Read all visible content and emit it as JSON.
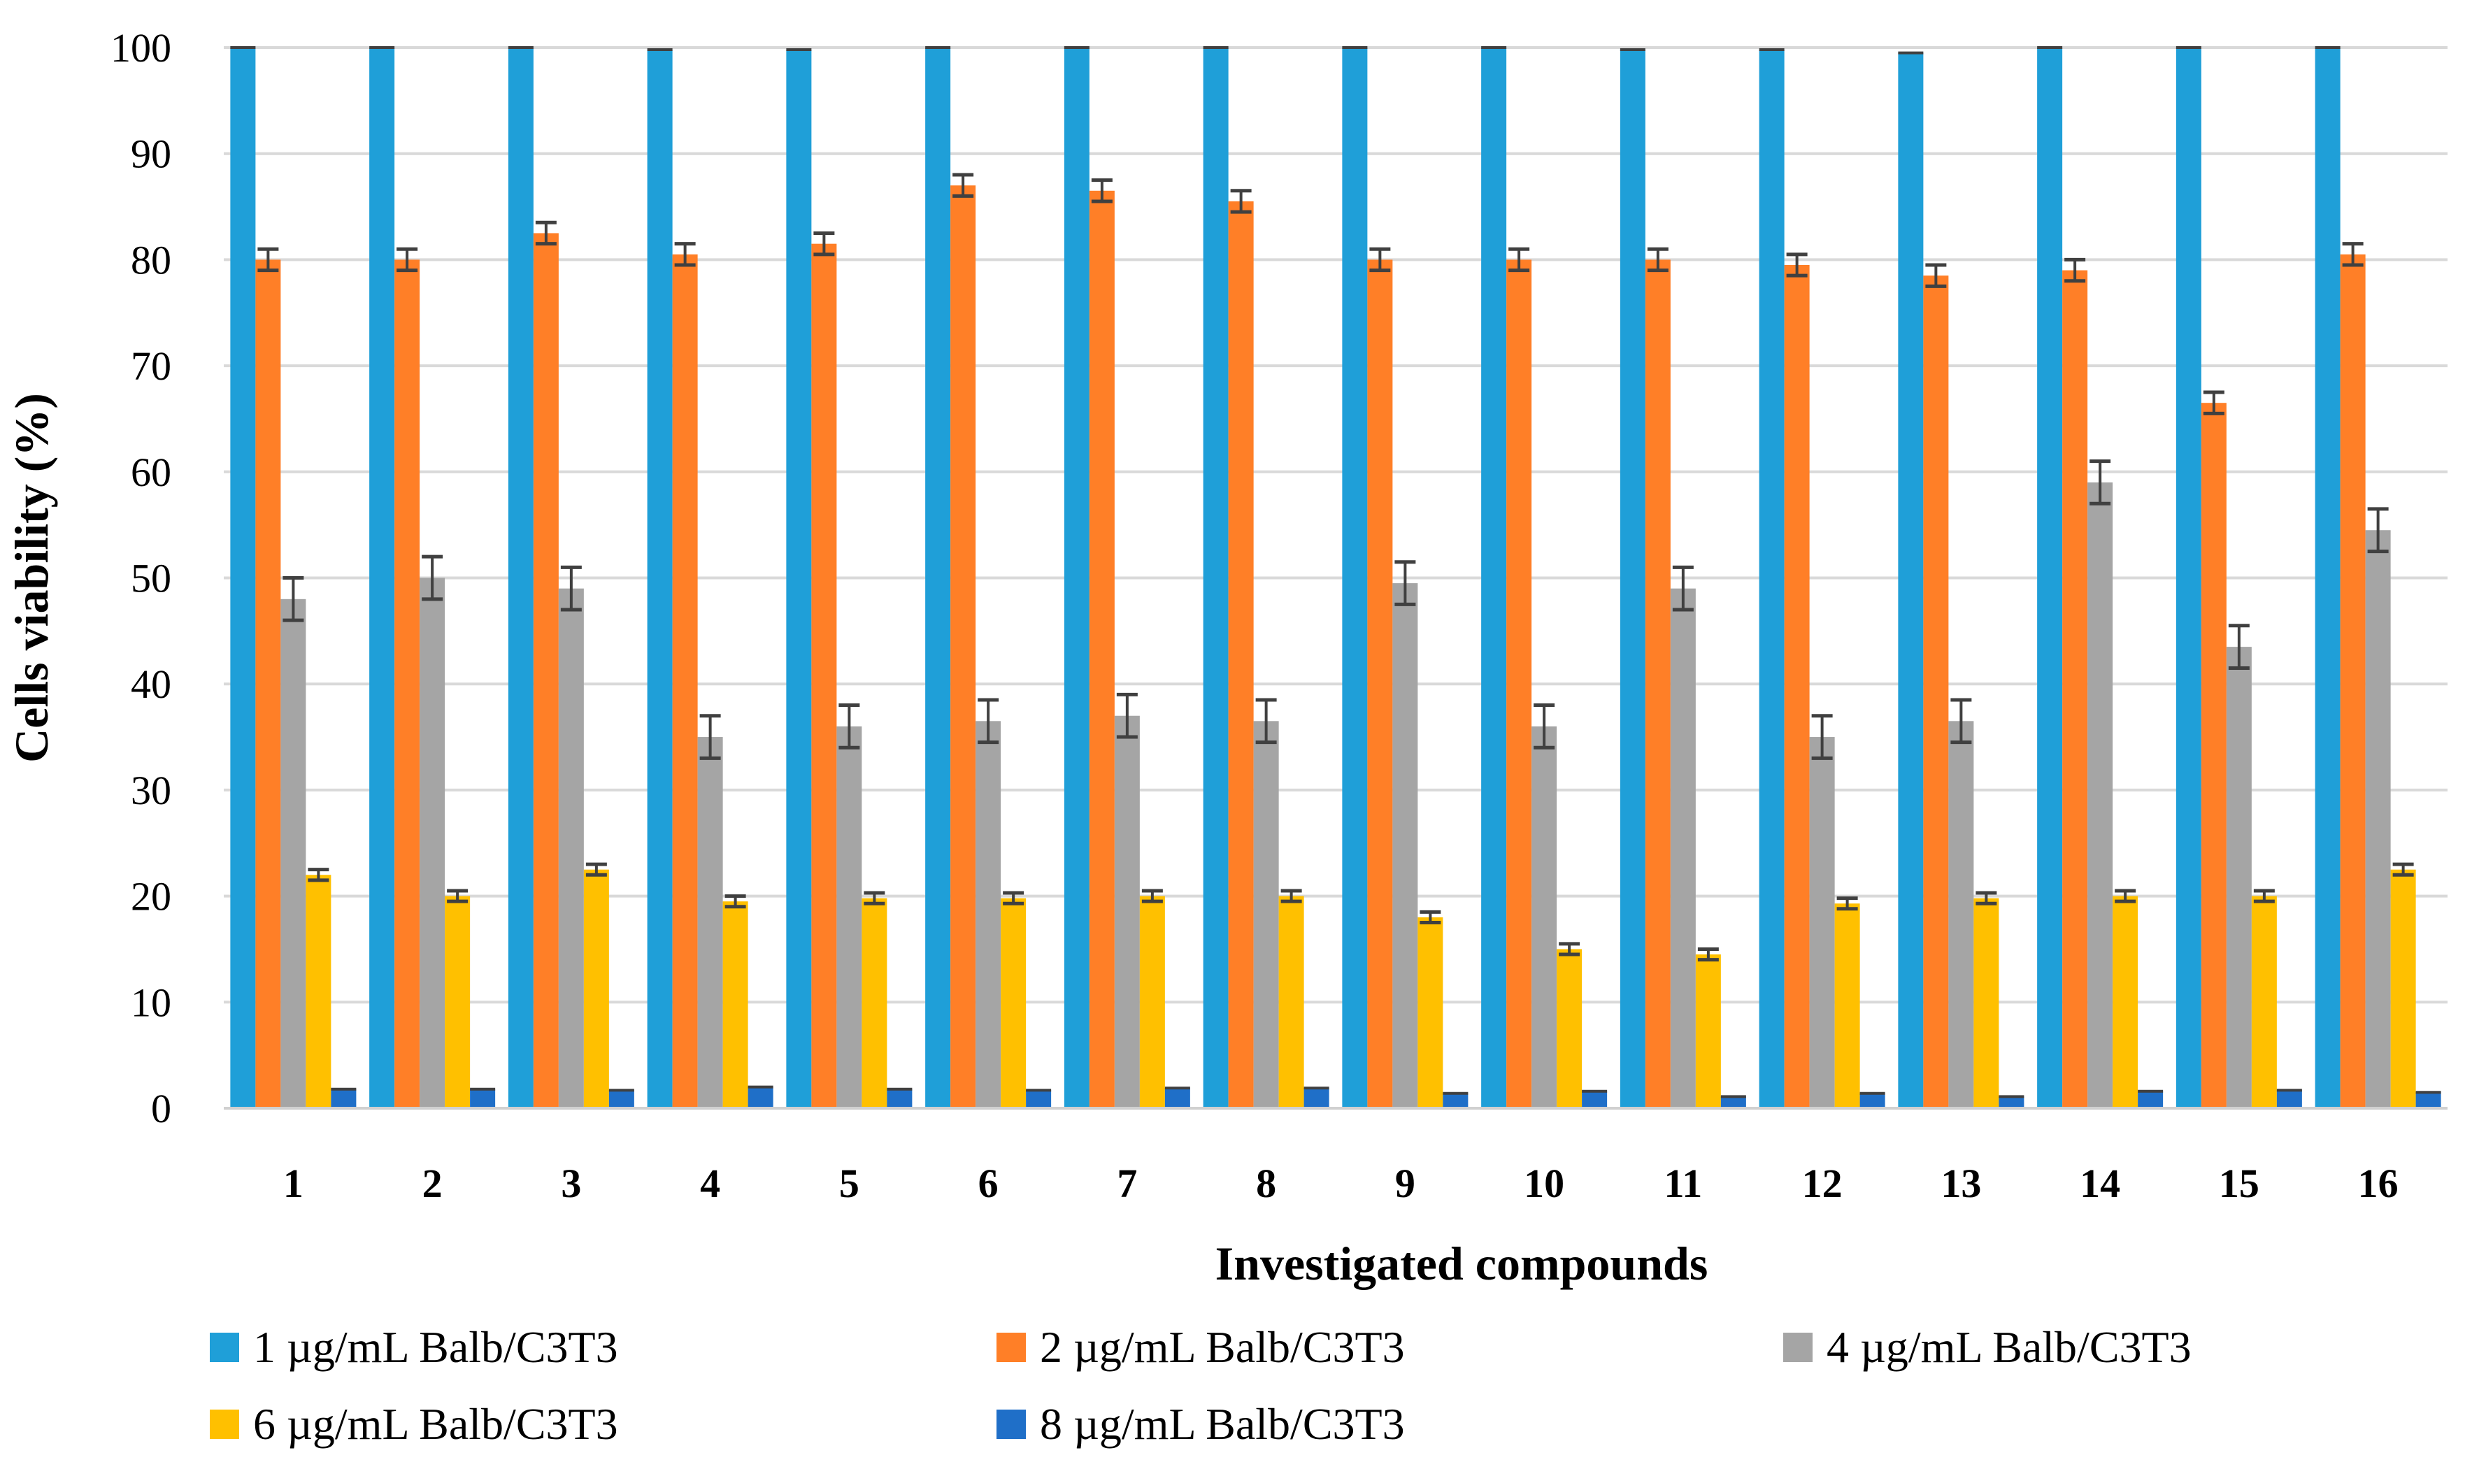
{
  "chart_data": {
    "type": "bar",
    "title": "",
    "xlabel": "Investigated compounds",
    "ylabel": "Cells viability (%)",
    "ylim": [
      0,
      100
    ],
    "yticks": [
      0,
      10,
      20,
      30,
      40,
      50,
      60,
      70,
      80,
      90,
      100
    ],
    "grid": true,
    "legend_position": "bottom",
    "categories": [
      "1",
      "2",
      "3",
      "4",
      "5",
      "6",
      "7",
      "8",
      "9",
      "10",
      "11",
      "12",
      "13",
      "14",
      "15",
      "16"
    ],
    "series": [
      {
        "name": "1 µg/mL Balb/C3T3",
        "color": "#1F9FD8",
        "values": [
          100,
          100,
          100,
          99.8,
          99.8,
          100,
          100,
          100,
          100,
          100,
          99.8,
          99.8,
          99.5,
          100,
          100,
          100
        ],
        "errors": [
          0,
          0,
          0,
          0,
          0,
          0,
          0,
          0,
          0,
          0,
          0,
          0,
          0,
          0,
          0,
          0
        ]
      },
      {
        "name": "2 µg/mL Balb/C3T3",
        "color": "#FF7F27",
        "values": [
          80,
          80,
          82.5,
          80.5,
          81.5,
          87,
          86.5,
          85.5,
          80,
          80,
          80,
          79.5,
          78.5,
          79,
          66.5,
          80.5
        ],
        "errors": [
          1,
          1,
          1,
          1,
          1,
          1,
          1,
          1,
          1,
          1,
          1,
          1,
          1,
          1,
          1,
          1
        ]
      },
      {
        "name": "4 µg/mL Balb/C3T3",
        "color": "#A5A5A5",
        "values": [
          48,
          50,
          49,
          35,
          36,
          36.5,
          37,
          36.5,
          49.5,
          36,
          49,
          35,
          36.5,
          59,
          43.5,
          54.5
        ],
        "errors": [
          2,
          2,
          2,
          2,
          2,
          2,
          2,
          2,
          2,
          2,
          2,
          2,
          2,
          2,
          2,
          2
        ]
      },
      {
        "name": "6 µg/mL Balb/C3T3",
        "color": "#FFC000",
        "values": [
          22,
          20,
          22.5,
          19.5,
          19.8,
          19.8,
          20,
          20,
          18,
          15,
          14.5,
          19.3,
          19.8,
          20,
          20,
          22.5
        ],
        "errors": [
          0.5,
          0.5,
          0.5,
          0.5,
          0.5,
          0.5,
          0.5,
          0.5,
          0.5,
          0.5,
          0.5,
          0.5,
          0.5,
          0.5,
          0.5,
          0.5
        ]
      },
      {
        "name": "8 µg/mL Balb/C3T3",
        "color": "#1F6FC8",
        "values": [
          1.8,
          1.8,
          1.7,
          2,
          1.8,
          1.7,
          1.9,
          1.9,
          1.4,
          1.6,
          1.1,
          1.4,
          1.1,
          1.6,
          1.7,
          1.5
        ],
        "errors": [
          0,
          0,
          0,
          0,
          0,
          0,
          0,
          0,
          0,
          0,
          0,
          0,
          0,
          0,
          0,
          0
        ]
      }
    ]
  }
}
